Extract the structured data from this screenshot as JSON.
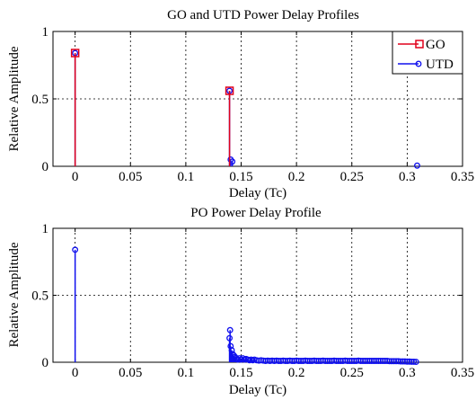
{
  "chart_data": [
    {
      "type": "stem",
      "title": "GO and UTD Power Delay Profiles",
      "xlabel": "Delay (Tc)",
      "ylabel": "Relative Amplitude",
      "xlim": [
        -0.02,
        0.35
      ],
      "ylim": [
        0,
        1
      ],
      "xticks": [
        0,
        0.05,
        0.1,
        0.15,
        0.2,
        0.25,
        0.3,
        0.35
      ],
      "xtick_labels": [
        "0",
        "0.05",
        "0.1",
        "0.15",
        "0.2",
        "0.25",
        "0.3",
        "0.35"
      ],
      "yticks": [
        0,
        0.5,
        1
      ],
      "ytick_labels": [
        "0",
        "0.5",
        "1"
      ],
      "grid": true,
      "legend_position": "top-right",
      "series": [
        {
          "name": "GO",
          "color": "#e0001b",
          "marker": "square",
          "x": [
            0,
            0.1395
          ],
          "y": [
            0.84,
            0.56
          ]
        },
        {
          "name": "UTD",
          "color": "#1010ee",
          "marker": "circle",
          "x": [
            0,
            0.1395,
            0.1405,
            0.142,
            0.309
          ],
          "y": [
            0.84,
            0.56,
            0.05,
            0.035,
            0.005
          ]
        }
      ]
    },
    {
      "type": "stem",
      "title": "PO Power Delay Profile",
      "xlabel": "Delay (Tc)",
      "ylabel": "Relative Amplitude",
      "xlim": [
        -0.02,
        0.35
      ],
      "ylim": [
        0,
        1
      ],
      "xticks": [
        0,
        0.05,
        0.1,
        0.15,
        0.2,
        0.25,
        0.3,
        0.35
      ],
      "xtick_labels": [
        "0",
        "0.05",
        "0.1",
        "0.15",
        "0.2",
        "0.25",
        "0.3",
        "0.35"
      ],
      "yticks": [
        0,
        0.5,
        1
      ],
      "ytick_labels": [
        "0",
        "0.5",
        "1"
      ],
      "grid": true,
      "series": [
        {
          "color": "#1010ee",
          "marker": "circle",
          "x": [
            0,
            0.1395,
            0.14,
            0.1405,
            0.1415,
            0.1425,
            0.1435,
            0.1445,
            0.1455,
            0.147,
            0.1485,
            0.15,
            0.1515,
            0.153,
            0.1545,
            0.156,
            0.1575,
            0.159,
            0.1605,
            0.162,
            0.164,
            0.166,
            0.168,
            0.17,
            0.172,
            0.174,
            0.176,
            0.178,
            0.18,
            0.182,
            0.184,
            0.186,
            0.188,
            0.19,
            0.192,
            0.194,
            0.196,
            0.198,
            0.2,
            0.202,
            0.204,
            0.206,
            0.208,
            0.21,
            0.212,
            0.214,
            0.216,
            0.218,
            0.22,
            0.222,
            0.224,
            0.226,
            0.228,
            0.23,
            0.232,
            0.234,
            0.236,
            0.238,
            0.24,
            0.242,
            0.244,
            0.246,
            0.248,
            0.25,
            0.252,
            0.254,
            0.256,
            0.258,
            0.26,
            0.262,
            0.264,
            0.266,
            0.268,
            0.27,
            0.272,
            0.274,
            0.276,
            0.278,
            0.28,
            0.282,
            0.284,
            0.286,
            0.288,
            0.29,
            0.292,
            0.294,
            0.296,
            0.298,
            0.3,
            0.302,
            0.304,
            0.306,
            0.308
          ],
          "y": [
            0.84,
            0.18,
            0.24,
            0.12,
            0.09,
            0.06,
            0.05,
            0.04,
            0.03,
            0.02,
            0.03,
            0.02,
            0.03,
            0.02,
            0.025,
            0.02,
            0.015,
            0.02,
            0.015,
            0.02,
            0.015,
            0.012,
            0.015,
            0.012,
            0.01,
            0.012,
            0.01,
            0.012,
            0.01,
            0.012,
            0.01,
            0.01,
            0.012,
            0.01,
            0.01,
            0.012,
            0.01,
            0.01,
            0.012,
            0.01,
            0.01,
            0.01,
            0.012,
            0.01,
            0.01,
            0.01,
            0.012,
            0.01,
            0.01,
            0.01,
            0.012,
            0.01,
            0.01,
            0.01,
            0.01,
            0.012,
            0.01,
            0.01,
            0.01,
            0.01,
            0.012,
            0.01,
            0.01,
            0.01,
            0.01,
            0.01,
            0.012,
            0.01,
            0.01,
            0.01,
            0.01,
            0.01,
            0.01,
            0.01,
            0.01,
            0.01,
            0.01,
            0.01,
            0.01,
            0.01,
            0.008,
            0.008,
            0.008,
            0.008,
            0.008,
            0.006,
            0.006,
            0.006,
            0.005,
            0.005,
            0.004,
            0.004,
            0.003
          ]
        }
      ]
    }
  ]
}
